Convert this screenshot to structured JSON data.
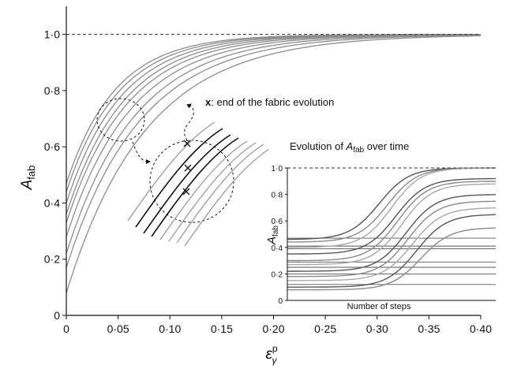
{
  "chart_data": [
    {
      "type": "line",
      "title": "",
      "xlabel_main": "ε",
      "xlabel_sub": "γ",
      "xlabel_sup": "p",
      "ylabel_main": "A",
      "ylabel_sub": "fab",
      "xlim": [
        0,
        0.4
      ],
      "ylim": [
        0,
        1.1
      ],
      "x_ticks": [
        0,
        0.05,
        0.1,
        0.15,
        0.2,
        0.25,
        0.3,
        0.35,
        0.4
      ],
      "x_tick_labels": [
        "0",
        "0·05",
        "0·10",
        "0·15",
        "0·20",
        "0·25",
        "0·30",
        "0·35",
        "0·40"
      ],
      "y_ticks": [
        0,
        0.2,
        0.4,
        0.6,
        0.8,
        1.0
      ],
      "y_tick_labels": [
        "0",
        "0·2",
        "0·4",
        "0·6",
        "0·8",
        "1·0"
      ],
      "reference_line": {
        "y": 1.0,
        "style": "dashed"
      },
      "grid": false,
      "line_color": "#8c8c8c",
      "series": [
        {
          "a0": 0.08,
          "k": 13
        },
        {
          "a0": 0.17,
          "k": 14
        },
        {
          "a0": 0.22,
          "k": 15
        },
        {
          "a0": 0.28,
          "k": 16
        },
        {
          "a0": 0.33,
          "k": 17
        },
        {
          "a0": 0.36,
          "k": 18
        },
        {
          "a0": 0.4,
          "k": 19
        },
        {
          "a0": 0.44,
          "k": 20
        },
        {
          "a0": 0.47,
          "k": 21
        }
      ],
      "annotation": {
        "marker": "x",
        "text": ": end of the fabric evolution"
      },
      "zoom_callout": {
        "x": 0.056,
        "y": 0.68
      }
    },
    {
      "type": "line",
      "title_prefix": "Evolution of ",
      "title_var": "A",
      "title_sub": "fab",
      "title_suffix": " over time",
      "xlabel": "Number of steps",
      "ylabel_main": "A",
      "ylabel_sub": "fab",
      "xlim": [
        0,
        1
      ],
      "ylim": [
        0,
        1.0
      ],
      "y_ticks": [
        0,
        0.2,
        0.4,
        0.6,
        0.8,
        1.0
      ],
      "y_tick_labels": [
        "0",
        "0·2",
        "0·4",
        "0·6",
        "0·8",
        "1·0"
      ],
      "reference_line": {
        "y": 1.0,
        "style": "dashed"
      },
      "flat_levels": [
        0.12,
        0.2,
        0.25,
        0.29,
        0.39,
        0.41,
        0.47
      ],
      "rising_series": [
        {
          "start": 0.46,
          "end": 1.0,
          "mid": 0.44
        },
        {
          "start": 0.44,
          "end": 1.0,
          "mid": 0.48
        },
        {
          "start": 0.4,
          "end": 1.0,
          "mid": 0.5
        },
        {
          "start": 0.35,
          "end": 0.92,
          "mid": 0.52
        },
        {
          "start": 0.3,
          "end": 0.9,
          "mid": 0.53
        },
        {
          "start": 0.27,
          "end": 0.88,
          "mid": 0.55
        },
        {
          "start": 0.22,
          "end": 0.8,
          "mid": 0.57
        },
        {
          "start": 0.18,
          "end": 0.75,
          "mid": 0.58
        },
        {
          "start": 0.15,
          "end": 0.7,
          "mid": 0.6
        },
        {
          "start": 0.1,
          "end": 0.65,
          "mid": 0.62
        },
        {
          "start": 0.08,
          "end": 0.55,
          "mid": 0.64
        }
      ]
    }
  ]
}
